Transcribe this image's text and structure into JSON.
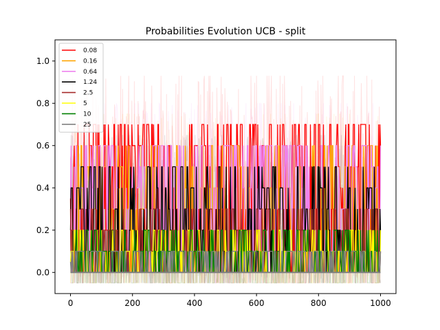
{
  "chart_data": {
    "type": "line",
    "title": "Probabilities Evolution UCB  - split",
    "xlabel": "",
    "ylabel": "",
    "xlim": [
      -50,
      1050
    ],
    "ylim": [
      -0.1,
      1.1
    ],
    "x_ticks": [
      0,
      200,
      400,
      600,
      800,
      1000
    ],
    "y_ticks": [
      0.0,
      0.2,
      0.4,
      0.6,
      0.8,
      1.0
    ],
    "x_tick_labels": [
      "0",
      "200",
      "400",
      "600",
      "800",
      "1000"
    ],
    "y_tick_labels": [
      "0.0",
      "0.2",
      "0.4",
      "0.6",
      "0.8",
      "1.0"
    ],
    "grid": false,
    "legend_position": "top-left",
    "x_range": [
      0,
      1000
    ],
    "series": [
      {
        "name": "0.08",
        "color": "#ff0000",
        "mean": 0.35,
        "min": 0.0,
        "max": 0.7,
        "band_max": 0.93
      },
      {
        "name": "0.16",
        "color": "#ffa500",
        "mean": 0.25,
        "min": 0.0,
        "max": 0.6,
        "band_max": 0.75
      },
      {
        "name": "0.64",
        "color": "#ee82ee",
        "mean": 0.35,
        "min": 0.0,
        "max": 0.6,
        "band_max": 0.8
      },
      {
        "name": "1.24",
        "color": "#000000",
        "mean": 0.2,
        "min": 0.0,
        "max": 0.5,
        "band_max": 0.65
      },
      {
        "name": "2.5",
        "color": "#a52a2a",
        "mean": 0.1,
        "min": 0.0,
        "max": 0.3,
        "band_max": 0.6
      },
      {
        "name": "5",
        "color": "#ffff00",
        "mean": 0.05,
        "min": 0.0,
        "max": 0.2,
        "band_max": 0.5
      },
      {
        "name": "10",
        "color": "#008000",
        "mean": 0.05,
        "min": 0.0,
        "max": 0.2,
        "band_max": 0.5
      },
      {
        "name": "25",
        "color": "#808080",
        "mean": 0.05,
        "min": 0.0,
        "max": 0.1,
        "band_max": 0.55
      }
    ]
  }
}
